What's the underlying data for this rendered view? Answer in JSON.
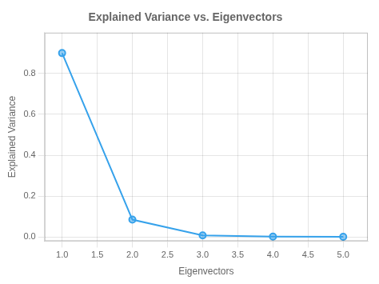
{
  "chart_data": {
    "type": "line",
    "title": "Explained Variance vs. Eigenvectors",
    "xlabel": "Eigenvectors",
    "ylabel": "Explained Variance",
    "x": [
      1,
      2,
      3,
      4,
      5
    ],
    "values": [
      0.9,
      0.085,
      0.008,
      0.002,
      0.001
    ],
    "xlim": [
      0.75,
      5.35
    ],
    "ylim": [
      -0.02,
      1.0
    ],
    "xticks": [
      {
        "value": 1,
        "label": "1.0"
      },
      1.5,
      {
        "value": 2,
        "label": "2.0"
      },
      2.5,
      {
        "value": 3,
        "label": "3.0"
      },
      3.5,
      {
        "value": 4,
        "label": "4.0"
      },
      4.5,
      {
        "value": 5,
        "label": "5.0"
      }
    ],
    "yticks": [
      {
        "value": 0,
        "label": "0.0"
      },
      0.2,
      0.4,
      0.6,
      0.8
    ],
    "grid": true,
    "marker": "circle"
  }
}
